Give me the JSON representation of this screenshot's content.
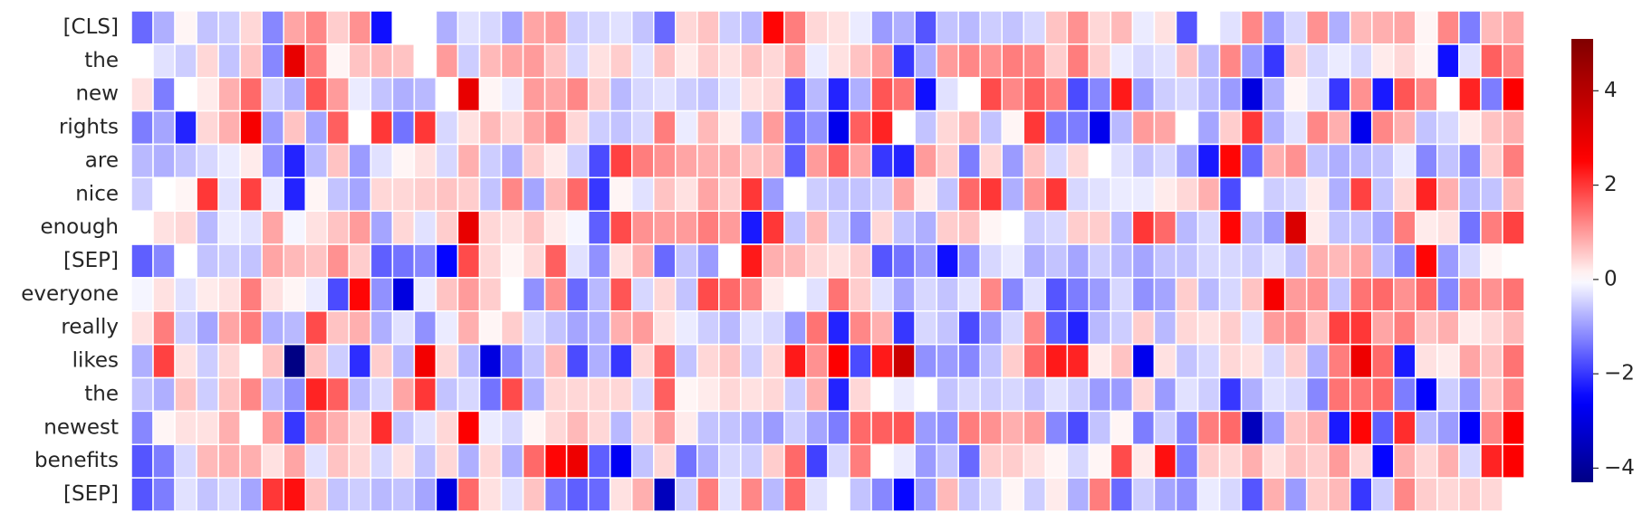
{
  "chart_data": {
    "type": "heatmap",
    "y_categories": [
      "[CLS]",
      "the",
      "new",
      "rights",
      "are",
      "nice",
      "enough",
      "[SEP]",
      "everyone",
      "really",
      "likes",
      "the",
      "newest",
      "benefits",
      "[SEP]"
    ],
    "colormap": "seismic",
    "zlim": [
      -4.3,
      5.1
    ],
    "zticks": [
      {
        "value": -4,
        "label": "−4"
      },
      {
        "value": -2,
        "label": "−2"
      },
      0,
      2,
      4
    ],
    "values": [
      [
        -1.5,
        -0.8,
        0.1,
        -0.6,
        -0.5,
        0.4,
        -1.2,
        0.9,
        1.2,
        0.5,
        1.1,
        -2.4,
        0.0,
        0.0,
        -0.8,
        -0.3,
        -0.4,
        -0.9,
        0.9,
        1.0,
        -0.5,
        -0.4,
        -0.3,
        -0.6,
        -1.5,
        0.4,
        0.6,
        -0.5,
        -0.7,
        2.5,
        1.3,
        0.4,
        0.3,
        -0.2,
        -1.0,
        -0.8,
        -1.7,
        -0.6,
        -0.7,
        -0.5,
        -0.6,
        -0.4,
        0.6,
        1.1,
        0.4,
        0.7,
        -0.2,
        0.3,
        -1.7,
        0.0,
        -0.3,
        1.2,
        -1.0,
        -0.4,
        1.1,
        -0.8,
        0.7,
        0.8,
        0.9,
        0.1,
        1.2,
        -1.3,
        0.7,
        0.9
      ],
      [
        0.0,
        -0.3,
        -0.5,
        0.4,
        -0.6,
        0.6,
        -1.2,
        3.0,
        1.3,
        0.1,
        0.6,
        0.7,
        0.6,
        0.0,
        1.0,
        -0.5,
        0.7,
        0.9,
        1.0,
        0.6,
        -0.4,
        0.3,
        0.5,
        -0.3,
        0.6,
        0.2,
        0.5,
        0.3,
        0.6,
        0.4,
        0.9,
        -0.2,
        0.3,
        0.6,
        1.0,
        -2.0,
        -0.8,
        1.0,
        1.2,
        1.1,
        1.3,
        1.2,
        0.5,
        1.3,
        0.5,
        -0.2,
        -0.4,
        -0.3,
        0.6,
        -0.7,
        1.2,
        -1.0,
        -2.0,
        0.5,
        -0.4,
        -0.2,
        -0.4,
        0.2,
        0.4,
        0.1,
        -2.4,
        -0.3,
        1.6,
        1.2
      ],
      [
        0.3,
        -1.3,
        0.0,
        0.2,
        0.8,
        1.5,
        -0.5,
        -0.8,
        1.7,
        1.0,
        -0.2,
        -0.6,
        -0.8,
        -0.7,
        0.0,
        3.0,
        0.1,
        -0.2,
        1.0,
        0.9,
        1.2,
        0.5,
        -0.7,
        -0.4,
        -0.3,
        -0.5,
        -0.6,
        -0.3,
        0.3,
        0.4,
        -1.8,
        -0.7,
        -2.2,
        -0.8,
        1.7,
        1.4,
        -2.4,
        -0.3,
        0.0,
        1.8,
        1.2,
        1.6,
        1.3,
        -1.8,
        -1.2,
        2.3,
        -1.0,
        -0.5,
        -0.4,
        -0.7,
        -1.0,
        -3.0,
        -0.8,
        0.1,
        -0.3,
        -2.0,
        1.1,
        -2.3,
        1.7,
        1.2,
        0.0,
        2.2,
        -1.3,
        2.6
      ],
      [
        -1.3,
        -0.9,
        -2.2,
        0.4,
        0.8,
        2.7,
        -1.0,
        0.6,
        -0.9,
        1.6,
        0.0,
        2.0,
        -1.4,
        2.0,
        -0.4,
        0.3,
        0.7,
        0.4,
        0.9,
        1.2,
        0.4,
        -0.5,
        -0.6,
        -0.4,
        1.3,
        -0.2,
        0.7,
        0.2,
        -0.8,
        1.0,
        -1.5,
        -1.1,
        -2.8,
        1.6,
        2.2,
        0.0,
        -0.6,
        0.4,
        0.7,
        -0.6,
        0.1,
        2.0,
        -1.3,
        -1.3,
        -2.8,
        -0.7,
        1.0,
        0.9,
        0.0,
        -0.9,
        0.5,
        2.0,
        -0.8,
        -0.3,
        1.2,
        0.8,
        -2.8,
        1.2,
        0.8,
        -0.6,
        -0.4,
        0.2,
        0.6,
        0.8
      ],
      [
        -0.7,
        -0.8,
        -0.6,
        -0.4,
        -0.2,
        0.2,
        -1.1,
        -2.2,
        -0.7,
        0.6,
        -1.0,
        -0.3,
        0.1,
        0.3,
        -0.4,
        0.8,
        -0.5,
        -0.8,
        0.5,
        0.2,
        -0.5,
        -1.8,
        1.9,
        1.3,
        1.1,
        0.9,
        0.8,
        0.8,
        0.6,
        0.7,
        -1.6,
        1.0,
        1.6,
        0.9,
        -2.0,
        -2.2,
        1.0,
        0.5,
        -1.3,
        0.4,
        -1.0,
        0.6,
        -0.4,
        0.4,
        0.0,
        -0.3,
        -0.6,
        -0.4,
        -0.9,
        -2.3,
        2.5,
        -1.5,
        0.8,
        1.1,
        -0.6,
        -0.8,
        -0.7,
        -0.6,
        -0.2,
        -1.2,
        -0.6,
        -1.2,
        0.5,
        1.3
      ],
      [
        -0.5,
        0.0,
        0.1,
        2.0,
        -0.3,
        1.9,
        -0.2,
        -2.2,
        0.1,
        -0.6,
        -0.9,
        0.4,
        0.4,
        0.5,
        0.6,
        0.5,
        -0.6,
        1.2,
        -0.9,
        0.7,
        1.5,
        -2.0,
        0.1,
        -0.3,
        0.6,
        0.3,
        0.9,
        0.5,
        2.0,
        -1.0,
        0.0,
        -0.5,
        -0.6,
        -0.6,
        -0.5,
        0.9,
        0.2,
        -0.6,
        1.5,
        2.0,
        -0.8,
        1.1,
        2.0,
        -0.4,
        -0.3,
        -0.2,
        -0.2,
        0.2,
        0.4,
        0.8,
        -1.8,
        0.0,
        -0.5,
        -0.4,
        0.2,
        -0.8,
        1.9,
        -0.6,
        0.4,
        2.2,
        0.8,
        -0.7,
        -0.6,
        0.7
      ],
      [
        0.0,
        0.3,
        0.4,
        -0.7,
        -0.2,
        -0.3,
        0.9,
        -0.1,
        0.3,
        0.6,
        1.0,
        -0.9,
        0.4,
        -0.3,
        0.5,
        3.0,
        0.4,
        0.3,
        0.6,
        0.2,
        -0.1,
        -1.6,
        1.8,
        1.1,
        1.0,
        1.0,
        1.3,
        1.0,
        -2.3,
        2.0,
        -0.6,
        0.7,
        -0.5,
        -1.1,
        0.4,
        -0.6,
        -0.8,
        0.5,
        0.6,
        0.1,
        0.0,
        -0.5,
        -0.4,
        0.5,
        0.5,
        -0.7,
        2.0,
        1.5,
        -0.7,
        -0.4,
        2.5,
        -0.7,
        -1.0,
        3.3,
        0.2,
        -0.6,
        -0.6,
        -0.9,
        1.3,
        0.2,
        0.3,
        -1.4,
        1.3,
        1.9
      ],
      [
        -1.6,
        -1.2,
        0.0,
        -0.6,
        -0.5,
        -0.6,
        0.9,
        0.7,
        0.6,
        1.1,
        0.5,
        -1.6,
        -1.4,
        -1.2,
        -2.5,
        1.8,
        0.4,
        0.1,
        0.4,
        1.6,
        -0.3,
        -1.1,
        0.3,
        0.8,
        -1.5,
        -0.6,
        -1.0,
        0.0,
        2.3,
        0.8,
        0.7,
        0.4,
        0.3,
        0.5,
        -1.7,
        -1.4,
        -1.0,
        -2.4,
        -1.1,
        -0.4,
        -0.2,
        -0.8,
        -0.6,
        -0.9,
        -0.5,
        -0.7,
        -0.9,
        -0.6,
        -0.6,
        -0.4,
        -0.4,
        -0.5,
        -0.3,
        -0.6,
        0.8,
        0.7,
        0.9,
        -0.7,
        -1.2,
        2.5,
        -1.0,
        -0.4,
        0.1,
        0.0
      ],
      [
        -0.1,
        0.3,
        -0.3,
        0.2,
        0.3,
        1.3,
        0.3,
        0.1,
        -0.2,
        -1.8,
        2.5,
        -1.1,
        -3.0,
        -0.2,
        0.6,
        1.0,
        0.5,
        0.0,
        -1.1,
        1.1,
        -1.5,
        -0.7,
        1.7,
        -0.4,
        0.4,
        -0.6,
        1.8,
        1.5,
        1.2,
        0.2,
        0.0,
        -0.3,
        1.4,
        0.5,
        -0.3,
        -0.9,
        -0.4,
        -0.6,
        -0.3,
        1.2,
        -1.2,
        -0.3,
        -1.7,
        -1.3,
        -1.0,
        -0.4,
        -1.1,
        -0.9,
        0.5,
        -0.7,
        -0.4,
        0.6,
        2.7,
        1.0,
        1.1,
        -0.6,
        1.4,
        1.5,
        1.1,
        1.5,
        -1.2,
        1.2,
        1.1,
        1.4
      ],
      [
        0.3,
        1.3,
        -0.5,
        -0.9,
        0.9,
        1.3,
        -0.8,
        -0.7,
        1.8,
        0.6,
        0.8,
        -0.8,
        -0.3,
        -1.1,
        -0.2,
        0.8,
        0.1,
        0.5,
        -0.4,
        -0.6,
        -0.9,
        -0.8,
        0.8,
        1.0,
        0.3,
        -0.2,
        -0.5,
        -0.7,
        -0.3,
        -0.4,
        -1.0,
        1.4,
        -2.2,
        1.2,
        0.8,
        -2.0,
        -0.4,
        -0.6,
        -1.8,
        -1.0,
        -0.4,
        1.2,
        -1.6,
        -2.2,
        -0.7,
        -0.5,
        0.5,
        -0.7,
        0.4,
        0.3,
        0.5,
        -0.3,
        1.0,
        1.1,
        0.6,
        1.9,
        2.0,
        0.9,
        1.3,
        0.6,
        0.8,
        0.2,
        0.4,
        0.7
      ],
      [
        -0.8,
        1.9,
        0.3,
        -0.5,
        0.4,
        0.0,
        0.6,
        -4.3,
        0.6,
        -0.5,
        -2.1,
        0.5,
        -0.7,
        2.8,
        0.4,
        -0.7,
        -3.0,
        -1.2,
        -0.6,
        0.7,
        -1.8,
        -0.8,
        -2.0,
        0.4,
        1.6,
        -0.6,
        0.4,
        0.6,
        -0.5,
        0.4,
        2.3,
        1.1,
        2.6,
        -1.8,
        2.3,
        3.6,
        -1.1,
        -1.0,
        -1.2,
        -0.6,
        0.5,
        1.5,
        2.3,
        2.2,
        0.2,
        0.6,
        -2.8,
        0.3,
        -0.6,
        -0.4,
        0.4,
        0.3,
        -0.4,
        0.5,
        -0.8,
        1.3,
        2.9,
        1.5,
        -2.3,
        0.3,
        0.2,
        0.9,
        0.6,
        1.4
      ],
      [
        -0.6,
        -0.8,
        0.6,
        -0.5,
        0.6,
        1.2,
        -0.7,
        -1.1,
        2.2,
        1.6,
        -0.7,
        -0.4,
        0.9,
        2.0,
        -0.6,
        -0.4,
        -1.4,
        1.8,
        -0.8,
        0.4,
        0.4,
        0.4,
        0.4,
        -0.4,
        1.6,
        0.1,
        0.2,
        0.4,
        0.3,
        0.4,
        -0.5,
        0.8,
        -2.2,
        0.4,
        0.0,
        -0.2,
        0.0,
        -0.6,
        -0.4,
        -0.5,
        -0.4,
        -0.6,
        -0.3,
        -0.5,
        -1.0,
        -1.0,
        0.4,
        -1.0,
        -0.3,
        -0.5,
        -2.0,
        -0.8,
        -0.3,
        -0.4,
        -1.2,
        1.4,
        1.4,
        1.5,
        -1.3,
        -2.6,
        -0.5,
        -1.0,
        0.6,
        1.2
      ],
      [
        -1.2,
        0.1,
        0.3,
        0.3,
        0.8,
        0.0,
        1.0,
        -2.0,
        1.1,
        0.8,
        0.4,
        2.1,
        -0.6,
        -0.3,
        0.4,
        2.6,
        -0.2,
        -0.4,
        0.1,
        0.4,
        0.7,
        0.4,
        -0.7,
        0.4,
        1.0,
        0.2,
        -0.6,
        -0.6,
        -0.8,
        -1.0,
        -0.5,
        -0.9,
        -1.3,
        1.5,
        1.6,
        1.7,
        -1.0,
        -1.1,
        1.3,
        1.1,
        0.8,
        1.0,
        -1.2,
        -1.8,
        -0.6,
        0.1,
        -1.3,
        -0.5,
        -1.2,
        1.3,
        1.5,
        -3.5,
        -1.0,
        0.6,
        0.8,
        -2.3,
        2.5,
        -1.6,
        2.1,
        -0.7,
        -1.0,
        -2.6,
        1.2,
        2.6
      ],
      [
        -1.7,
        -1.3,
        -0.4,
        0.7,
        0.8,
        0.8,
        0.3,
        0.9,
        -0.3,
        0.6,
        0.4,
        -0.4,
        0.3,
        -0.6,
        0.4,
        -0.8,
        0.4,
        -0.8,
        1.5,
        2.5,
        2.9,
        -1.6,
        -2.7,
        -0.6,
        0.4,
        -1.4,
        -0.8,
        -0.4,
        -0.5,
        0.5,
        1.5,
        -1.9,
        -0.4,
        1.3,
        0.0,
        -0.2,
        -1.0,
        -0.6,
        -1.5,
        0.5,
        0.5,
        0.3,
        0.1,
        -0.4,
        0.1,
        1.8,
        0.2,
        2.4,
        -1.3,
        0.5,
        0.4,
        0.8,
        0.3,
        0.6,
        0.5,
        1.0,
        0.4,
        -2.5,
        0.8,
        0.4,
        0.8,
        -0.4,
        2.2,
        2.6
      ],
      [
        -1.7,
        -1.3,
        -0.3,
        -0.6,
        -0.4,
        -0.9,
        2.0,
        2.4,
        0.6,
        -0.6,
        -0.5,
        -0.7,
        -0.6,
        -0.9,
        -3.0,
        1.5,
        0.3,
        -0.3,
        0.6,
        -1.3,
        -1.6,
        -1.5,
        0.3,
        0.8,
        -3.5,
        -0.5,
        1.3,
        -0.3,
        1.2,
        -0.7,
        1.5,
        -0.3,
        0.0,
        -0.6,
        -1.2,
        -2.5,
        -1.0,
        0.7,
        -0.6,
        -0.4,
        0.1,
        -0.5,
        0.2,
        -0.8,
        1.3,
        -1.5,
        -0.5,
        -0.9,
        -1.1,
        -0.2,
        -0.4,
        -1.7,
        0.8,
        -1.0,
        0.5,
        0.7,
        -2.0,
        -0.5,
        1.2,
        0.5,
        0.4,
        0.5,
        0.4,
        null
      ]
    ]
  }
}
